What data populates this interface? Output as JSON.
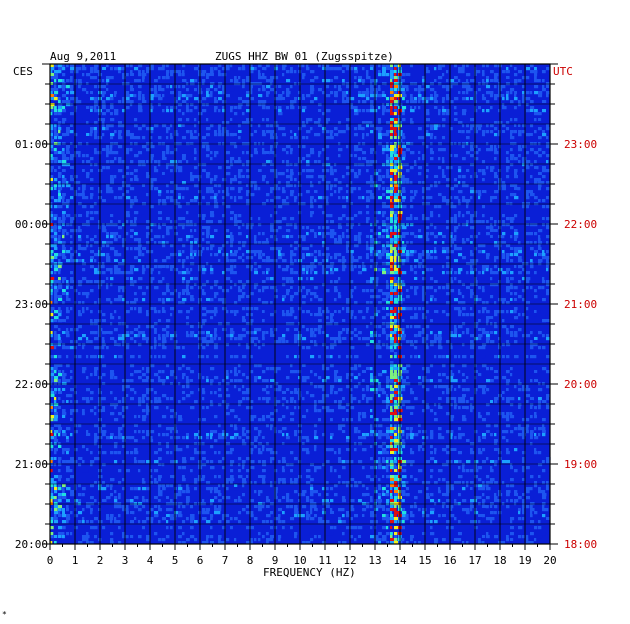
{
  "header": {
    "date": "Aug 9,2011",
    "station": "ZUGS HHZ BW 01 (Zugsspitze)"
  },
  "axes": {
    "left_label": "CES",
    "right_label": "UTC",
    "xlabel": "FREQUENCY (HZ)"
  },
  "footer": {
    "mark": "*"
  },
  "colors": {
    "frame": "#000000",
    "right_axis_text": "#cc0000",
    "background_signal": "#0a1fd6",
    "grid": "#000000"
  },
  "chart_data": {
    "type": "heatmap",
    "x": {
      "label": "FREQUENCY (HZ)",
      "min": 0,
      "max": 20,
      "ticks": [
        "0",
        "1",
        "2",
        "3",
        "4",
        "5",
        "6",
        "7",
        "8",
        "9",
        "10",
        "11",
        "12",
        "13",
        "14",
        "15",
        "16",
        "17",
        "18",
        "19",
        "20"
      ]
    },
    "y_left": {
      "label": "CES",
      "ticks": [
        "01:00",
        "00:00",
        "23:00",
        "22:00",
        "21:00",
        "20:00"
      ]
    },
    "y_right": {
      "label": "UTC",
      "ticks": [
        "23:00",
        "22:00",
        "21:00",
        "20:00",
        "19:00",
        "18:00"
      ]
    },
    "hours_span": 6,
    "features": [
      {
        "type": "low-frequency energy",
        "freq_range_hz": [
          0,
          1
        ]
      },
      {
        "type": "narrow spectral line",
        "freq_hz": 13.9
      }
    ]
  }
}
